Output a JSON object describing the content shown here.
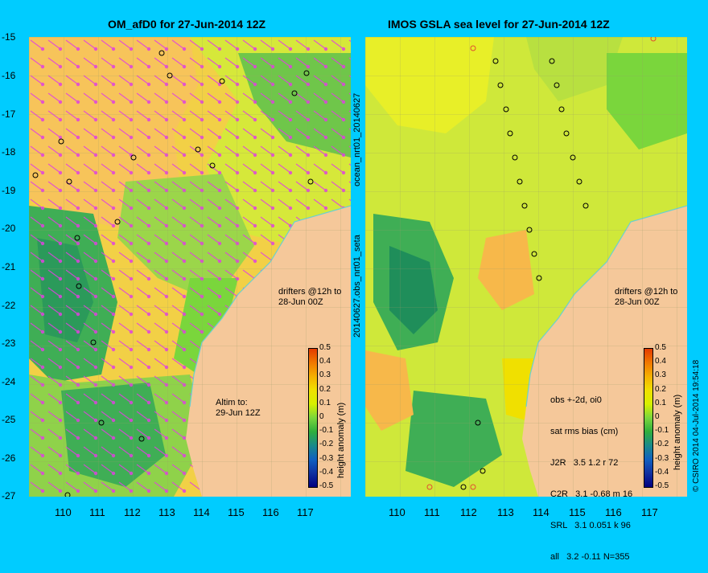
{
  "left_panel": {
    "title": "OM_afD0 for 27-Jun-2014 12Z",
    "drifters_note_line1": "drifters @12h to",
    "drifters_note_line2": "28-Jun 00Z",
    "altim_note_line1": "Altim to:",
    "altim_note_line2": "29-Jun 12Z"
  },
  "right_panel": {
    "title": "IMOS GSLA sea level  for 27-Jun-2014 12Z",
    "drifters_note_line1": "drifters @12h to",
    "drifters_note_line2": "28-Jun 00Z",
    "stats": {
      "header1": "obs +-2d, oi0",
      "header2": "sat rms bias (cm)",
      "rows": [
        "J2R   3.5 1.2 r 72",
        "C2R   3.1 -0.68 m 16",
        "SRL   3.1 0.051 k 96",
        "all   3.2 -0.11 N=355"
      ]
    }
  },
  "side_label_top": "ocean_nrt01_20140627",
  "side_label_bottom": "20140627.obs_nrt01_seta",
  "footer_label": "© CSIRO 2014   04-Jul-2014 19:54:18",
  "axes": {
    "y_ticks": [
      "-15",
      "-16",
      "-17",
      "-18",
      "-19",
      "-20",
      "-21",
      "-22",
      "-23",
      "-24",
      "-25",
      "-26",
      "-27"
    ],
    "x_ticks": [
      "110",
      "111",
      "112",
      "113",
      "114",
      "115",
      "116",
      "117"
    ]
  },
  "colorbar": {
    "label": "height anomaly (m)",
    "ticks": [
      "0.5",
      "0.4",
      "0.3",
      "0.2",
      "0.1",
      "0",
      "-0.1",
      "-0.2",
      "-0.3",
      "-0.4",
      "-0.5"
    ],
    "colors": [
      "#e33a00",
      "#f07800",
      "#f5b000",
      "#f0e000",
      "#d7f000",
      "#7ad63c",
      "#2fae3c",
      "#1a8a8a",
      "#1060c0",
      "#1030a0",
      "#000080"
    ]
  }
}
